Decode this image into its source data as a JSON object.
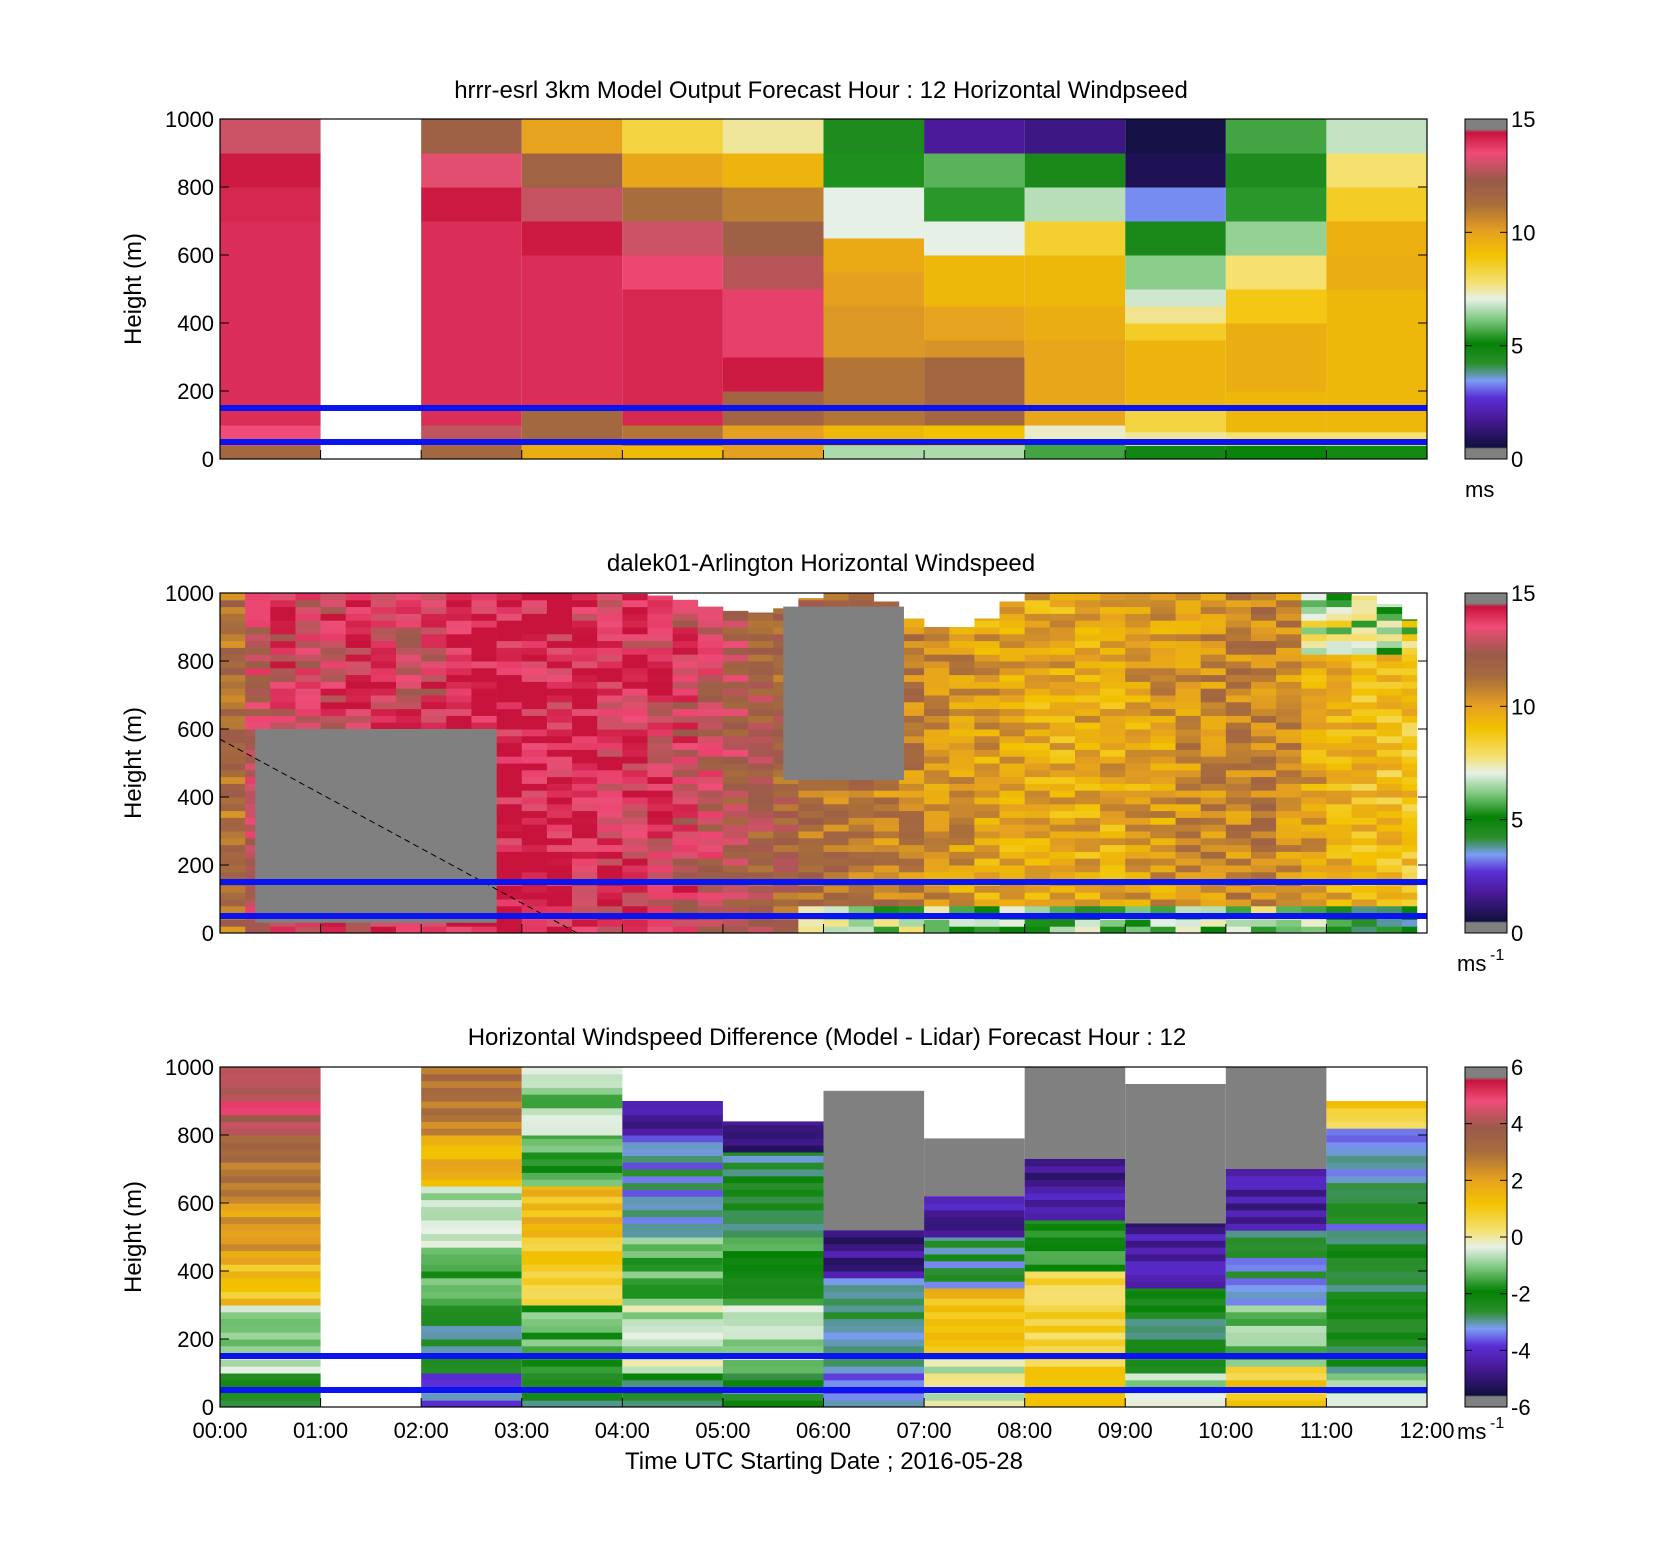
{
  "figure": {
    "xlabel": "Time UTC  Starting Date ; 2016-05-28",
    "x_ticks": [
      "00:00",
      "01:00",
      "02:00",
      "03:00",
      "04:00",
      "05:00",
      "06:00",
      "07:00",
      "08:00",
      "09:00",
      "10:00",
      "11:00",
      "12:00"
    ],
    "reference_lines_height_m": [
      50,
      150
    ],
    "reference_line_color": "#0a14f0",
    "missing_color": "#808080"
  },
  "chart_data": [
    {
      "type": "heatmap",
      "title": "hrrr-esrl 3km Model Output   Forecast Hour : 12 Horizontal Windpseed",
      "ylabel": "Height (m)",
      "ylim": [
        0,
        1000
      ],
      "y_ticks": [
        "0",
        "200",
        "400",
        "600",
        "800",
        "1000"
      ],
      "x_range_hours": [
        0,
        12
      ],
      "colorbar": {
        "min": 0,
        "max": 15,
        "ticks": [
          "0",
          "5",
          "10",
          "15"
        ],
        "unit_label": "ms",
        "unit_sup": ""
      },
      "colorscale": "windspeed",
      "columns": [
        {
          "hour": 0,
          "cells": [
            [
              0,
              40,
              11.5
            ],
            [
              40,
              100,
              13.5
            ],
            [
              100,
              700,
              14.0
            ],
            [
              700,
              800,
              14.1
            ],
            [
              800,
              900,
              14.3
            ],
            [
              900,
              1000,
              13.0
            ]
          ]
        },
        {
          "hour": 1,
          "cells": []
        },
        {
          "hour": 2,
          "cells": [
            [
              0,
              40,
              11.5
            ],
            [
              40,
              100,
              12.8
            ],
            [
              100,
              700,
              14.0
            ],
            [
              700,
              800,
              14.3
            ],
            [
              800,
              900,
              13.3
            ],
            [
              900,
              1000,
              11.9
            ]
          ]
        },
        {
          "hour": 3,
          "cells": [
            [
              0,
              50,
              9.6
            ],
            [
              50,
              150,
              11.5
            ],
            [
              150,
              600,
              14.0
            ],
            [
              600,
              700,
              14.3
            ],
            [
              700,
              800,
              12.9
            ],
            [
              800,
              900,
              11.8
            ],
            [
              900,
              1000,
              9.9
            ]
          ]
        },
        {
          "hour": 4,
          "cells": [
            [
              0,
              40,
              9.2
            ],
            [
              40,
              100,
              11.0
            ],
            [
              100,
              500,
              14.1
            ],
            [
              500,
              600,
              13.6
            ],
            [
              600,
              700,
              13.0
            ],
            [
              700,
              800,
              11.2
            ],
            [
              800,
              900,
              9.8
            ],
            [
              900,
              1000,
              8.3
            ]
          ]
        },
        {
          "hour": 5,
          "cells": [
            [
              0,
              100,
              10.0
            ],
            [
              100,
              200,
              11.7
            ],
            [
              200,
              300,
              14.3
            ],
            [
              300,
              500,
              13.7
            ],
            [
              500,
              600,
              12.7
            ],
            [
              600,
              700,
              11.9
            ],
            [
              700,
              800,
              10.8
            ],
            [
              800,
              900,
              9.4
            ],
            [
              900,
              1000,
              7.5
            ]
          ]
        },
        {
          "hour": 6,
          "cells": [
            [
              0,
              40,
              6.5
            ],
            [
              40,
              100,
              9.3
            ],
            [
              100,
              300,
              11.0
            ],
            [
              300,
              450,
              10.2
            ],
            [
              450,
              550,
              10.0
            ],
            [
              550,
              650,
              9.7
            ],
            [
              650,
              800,
              7.0
            ],
            [
              800,
              900,
              5.3
            ],
            [
              900,
              1000,
              4.5
            ]
          ]
        },
        {
          "hour": 7,
          "cells": [
            [
              0,
              40,
              6.5
            ],
            [
              40,
              100,
              9.0
            ],
            [
              100,
              300,
              11.6
            ],
            [
              300,
              350,
              10.3
            ],
            [
              350,
              450,
              9.9
            ],
            [
              450,
              600,
              9.3
            ],
            [
              600,
              700,
              7.0
            ],
            [
              700,
              800,
              5.4
            ],
            [
              800,
              900,
              5.8
            ],
            [
              900,
              1000,
              1.8
            ]
          ]
        },
        {
          "hour": 8,
          "cells": [
            [
              0,
              50,
              5.6
            ],
            [
              50,
              100,
              7.2
            ],
            [
              100,
              350,
              9.8
            ],
            [
              350,
              450,
              9.6
            ],
            [
              450,
              600,
              9.3
            ],
            [
              600,
              700,
              8.5
            ],
            [
              700,
              800,
              6.6
            ],
            [
              800,
              900,
              4.6
            ],
            [
              900,
              1000,
              1.5
            ]
          ]
        },
        {
          "hour": 9,
          "cells": [
            [
              0,
              40,
              4.8
            ],
            [
              40,
              80,
              7.5
            ],
            [
              80,
              150,
              8.3
            ],
            [
              150,
              350,
              9.4
            ],
            [
              350,
              400,
              8.6
            ],
            [
              400,
              450,
              7.6
            ],
            [
              450,
              500,
              6.8
            ],
            [
              500,
              600,
              6.2
            ],
            [
              600,
              700,
              4.6
            ],
            [
              700,
              800,
              3.3
            ],
            [
              800,
              900,
              0.8
            ],
            [
              900,
              1000,
              0.6
            ]
          ]
        },
        {
          "hour": 10,
          "cells": [
            [
              0,
              40,
              5.0
            ],
            [
              40,
              80,
              7.8
            ],
            [
              80,
              200,
              9.3
            ],
            [
              200,
              400,
              9.6
            ],
            [
              400,
              500,
              8.8
            ],
            [
              500,
              600,
              7.8
            ],
            [
              600,
              700,
              6.3
            ],
            [
              700,
              800,
              5.4
            ],
            [
              800,
              900,
              4.5
            ],
            [
              900,
              1000,
              5.6
            ]
          ]
        },
        {
          "hour": 11,
          "cells": [
            [
              0,
              40,
              5.2
            ],
            [
              40,
              80,
              7.8
            ],
            [
              80,
              500,
              9.3
            ],
            [
              500,
              600,
              9.6
            ],
            [
              600,
              700,
              9.5
            ],
            [
              700,
              800,
              8.6
            ],
            [
              800,
              900,
              7.8
            ],
            [
              900,
              1000,
              6.7
            ]
          ]
        }
      ]
    },
    {
      "type": "heatmap",
      "title": "dalek01-Arlington  Horizontal Windspeed",
      "ylabel": "Height (m)",
      "ylim": [
        0,
        1000
      ],
      "y_ticks": [
        "0",
        "200",
        "400",
        "600",
        "800",
        "1000"
      ],
      "x_range_hours": [
        0,
        12
      ],
      "colorbar": {
        "min": 0,
        "max": 15,
        "ticks": [
          "0",
          "5",
          "10",
          "15"
        ],
        "unit_label": "ms",
        "unit_sup": "-1"
      },
      "colorscale": "windspeed",
      "lidar_profile_nodes_hours": [
        0,
        0.5,
        1,
        1.5,
        2,
        2.5,
        3,
        3.5,
        4,
        4.5,
        5,
        5.5,
        6,
        6.5,
        7,
        7.5,
        8,
        8.5,
        9,
        9.5,
        10,
        10.5,
        11,
        11.5,
        12
      ],
      "lidar_profile_values": [
        10.5,
        13.5,
        13.3,
        13.8,
        13.2,
        14.2,
        14.3,
        14.0,
        13.8,
        13.6,
        12.6,
        11.8,
        11.2,
        10.8,
        10.6,
        10.0,
        9.6,
        9.7,
        9.8,
        10.2,
        10.6,
        10.8,
        9.5,
        9.0,
        9.0
      ],
      "lidar_top_m": [
        1000,
        1000,
        1000,
        1000,
        1000,
        1000,
        1000,
        1000,
        1000,
        990,
        950,
        940,
        1000,
        1000,
        900,
        900,
        1000,
        1000,
        1000,
        1000,
        1000,
        1000,
        1000,
        990,
        900
      ],
      "lidar_gap_regions": [
        {
          "x": [
            0.35,
            2.75
          ],
          "y": [
            30,
            600
          ]
        },
        {
          "x": [
            5.6,
            6.8
          ],
          "y": [
            450,
            960
          ]
        }
      ],
      "dashed_line": {
        "from": [
          0,
          570
        ],
        "to": [
          3.55,
          0
        ]
      }
    },
    {
      "type": "heatmap",
      "title": "Horizontal Windspeed Difference (Model - Lidar) Forecast Hour : 12",
      "ylabel": "Height (m)",
      "xlabel": "Time UTC  Starting Date ; 2016-05-28",
      "ylim": [
        0,
        1000
      ],
      "y_ticks": [
        "0",
        "200",
        "400",
        "600",
        "800",
        "1000"
      ],
      "x_range_hours": [
        0,
        12
      ],
      "colorbar": {
        "min": -6,
        "max": 6,
        "ticks": [
          "-6",
          "-4",
          "-2",
          "0",
          "2",
          "4",
          "6"
        ],
        "unit_label": "ms",
        "unit_sup": "-1"
      },
      "colorscale": "difference",
      "columns": [
        {
          "hour": 0,
          "top": 1000,
          "gap": [],
          "cells": [
            [
              0,
              100,
              -2.2
            ],
            [
              100,
              300,
              -0.8
            ],
            [
              300,
              420,
              1.2
            ],
            [
              420,
              600,
              2.2
            ],
            [
              600,
              800,
              3.0
            ],
            [
              800,
              1000,
              4.4
            ]
          ]
        },
        {
          "hour": 1,
          "top": 0,
          "gap": [],
          "cells": []
        },
        {
          "hour": 2,
          "top": 1000,
          "gap": [],
          "cells": [
            [
              0,
              100,
              -3.4
            ],
            [
              100,
              300,
              -2.6
            ],
            [
              300,
              450,
              -1.6
            ],
            [
              450,
              650,
              -0.7
            ],
            [
              650,
              800,
              1.6
            ],
            [
              800,
              1000,
              2.8
            ]
          ]
        },
        {
          "hour": 3,
          "top": 1000,
          "gap": [],
          "cells": [
            [
              0,
              100,
              -2.8
            ],
            [
              100,
              300,
              -1.5
            ],
            [
              300,
              500,
              0.8
            ],
            [
              500,
              650,
              1.4
            ],
            [
              650,
              800,
              -1.6
            ],
            [
              800,
              1000,
              -1.0
            ]
          ]
        },
        {
          "hour": 4,
          "top": 900,
          "gap": [],
          "cells": [
            [
              0,
              100,
              -2.4
            ],
            [
              100,
              300,
              -0.6
            ],
            [
              300,
              500,
              -1.2
            ],
            [
              500,
              800,
              -3.2
            ],
            [
              800,
              900,
              -4.8
            ]
          ]
        },
        {
          "hour": 5,
          "top": 840,
          "gap": [],
          "cells": [
            [
              0,
              100,
              -2.6
            ],
            [
              100,
              300,
              -0.8
            ],
            [
              300,
              500,
              -1.8
            ],
            [
              500,
              750,
              -2.6
            ],
            [
              750,
              840,
              -4.8
            ]
          ]
        },
        {
          "hour": 6,
          "top": 930,
          "gap": [
            [
              520,
              930
            ]
          ],
          "cells": [
            [
              0,
              100,
              -3.6
            ],
            [
              100,
              380,
              -3.0
            ],
            [
              380,
              520,
              -4.8
            ]
          ]
        },
        {
          "hour": 7,
          "top": 790,
          "gap": [
            [
              620,
              790
            ]
          ],
          "cells": [
            [
              0,
              160,
              -0.4
            ],
            [
              160,
              350,
              1.2
            ],
            [
              350,
              500,
              -2.8
            ],
            [
              500,
              620,
              -4.4
            ]
          ]
        },
        {
          "hour": 8,
          "top": 1000,
          "gap": [
            [
              730,
              1000
            ]
          ],
          "cells": [
            [
              0,
              100,
              1.6
            ],
            [
              100,
              400,
              0.6
            ],
            [
              400,
              550,
              -1.6
            ],
            [
              550,
              730,
              -4.6
            ]
          ]
        },
        {
          "hour": 9,
          "top": 950,
          "gap": [
            [
              540,
              950
            ]
          ],
          "cells": [
            [
              0,
              100,
              -0.6
            ],
            [
              100,
              350,
              -2.4
            ],
            [
              350,
              540,
              -4.6
            ]
          ]
        },
        {
          "hour": 10,
          "top": 1000,
          "gap": [
            [
              700,
              1000
            ]
          ],
          "cells": [
            [
              0,
              120,
              0.8
            ],
            [
              120,
              300,
              -1.0
            ],
            [
              300,
              520,
              -3.0
            ],
            [
              520,
              700,
              -4.6
            ]
          ]
        },
        {
          "hour": 11,
          "top": 900,
          "gap": [],
          "cells": [
            [
              0,
              100,
              -1.0
            ],
            [
              100,
              500,
              -2.4
            ],
            [
              500,
              820,
              -3.0
            ],
            [
              820,
              900,
              0.8
            ]
          ]
        }
      ]
    }
  ]
}
